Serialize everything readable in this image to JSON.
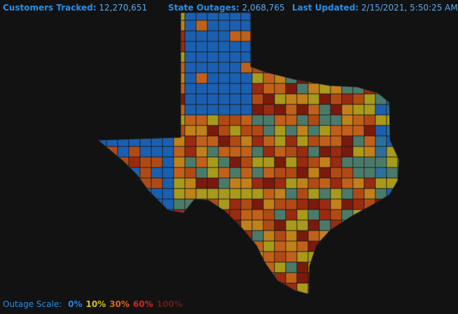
{
  "header": {
    "customers_tracked": {
      "label": "Customers Tracked:",
      "value": "12,270,651"
    },
    "state_outages": {
      "label": "State Outages:",
      "value": "2,068,765"
    },
    "last_updated": {
      "label": "Last Updated:",
      "value": "2/15/2021, 5:50:25 AM"
    }
  },
  "legend": {
    "label": "Outage Scale:",
    "items": [
      {
        "label": "0%",
        "color": "#1e88e5"
      },
      {
        "label": "10%",
        "color": "#d4c21c"
      },
      {
        "label": "30%",
        "color": "#e0621a"
      },
      {
        "label": "60%",
        "color": "#d0281a"
      },
      {
        "label": "100%",
        "color": "#6a1a12"
      }
    ]
  }
}
